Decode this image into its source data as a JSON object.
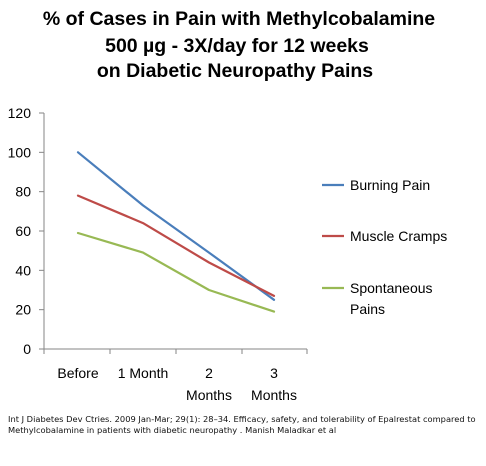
{
  "chart_data": {
    "type": "line",
    "title_lines": [
      "% of Cases in Pain with  Methylcobalamine",
      "500 µg - 3X/day for 12 weeks",
      "on Diabetic Neuropathy Pains"
    ],
    "categories": [
      [
        "Before"
      ],
      [
        "1 Month"
      ],
      [
        "2",
        "Months"
      ],
      [
        "3",
        "Months"
      ]
    ],
    "series": [
      {
        "name": "Burning Pain",
        "label_lines": [
          "Burning Pain"
        ],
        "values": [
          100,
          73,
          49,
          25
        ],
        "color": "#4a7ebb"
      },
      {
        "name": "Muscle Cramps",
        "label_lines": [
          "Muscle Cramps"
        ],
        "values": [
          78,
          64,
          44,
          27
        ],
        "color": "#be4b48"
      },
      {
        "name": "Spontaneous Pains",
        "label_lines": [
          "Spontaneous",
          "Pains"
        ],
        "values": [
          59,
          49,
          30,
          19
        ],
        "color": "#98b954"
      }
    ],
    "ylim": [
      0,
      120
    ],
    "yticks": [
      0,
      20,
      40,
      60,
      80,
      100,
      120
    ],
    "legend_position": "right",
    "grid": false
  },
  "citation": "Int J Diabetes Dev Ctries. 2009 Jan-Mar; 29(1): 28–34. Efficacy, safety, and tolerability of Epalrestat compared to Methylcobalamine in patients with diabetic neuropathy . Manish Maladkar et al"
}
